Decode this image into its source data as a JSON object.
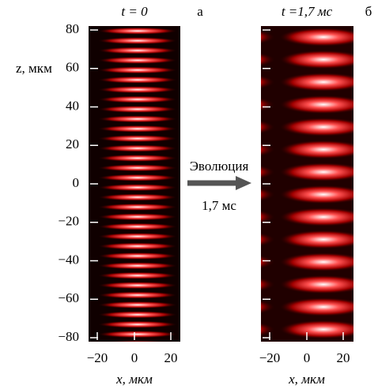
{
  "panel_a": {
    "title": "t = 0",
    "label": "а",
    "y_axis_label": "z, мкм",
    "y_ticks": [
      "80",
      "60",
      "40",
      "20",
      "0",
      "−20",
      "−40",
      "−60",
      "−80"
    ],
    "x_ticks": [
      "−20",
      "0",
      "20"
    ],
    "x_axis_label": "x, мкм"
  },
  "arrow": {
    "top": "Эволюция",
    "bottom": "1,7 мс"
  },
  "panel_b": {
    "title": "t =1,7 мс",
    "label": "б",
    "x_ticks": [
      "−20",
      "0",
      "20"
    ],
    "x_axis_label": "x, мкм"
  }
}
